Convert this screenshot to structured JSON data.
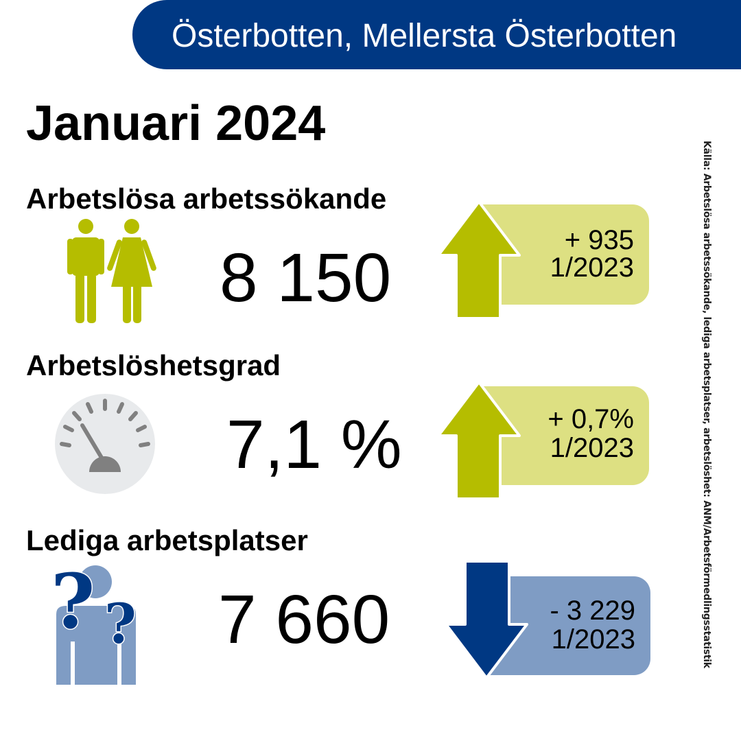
{
  "header": {
    "region": "Österbotten, Mellersta Österbotten"
  },
  "title": "Januari 2024",
  "colors": {
    "banner": "#003883",
    "green_arrow": "#b5bd00",
    "green_box": "#dde082",
    "blue_arrow": "#003883",
    "blue_box": "#7f9cc4",
    "icon_green": "#b5bd00",
    "icon_blue": "#7f9cc4"
  },
  "sections": [
    {
      "label": "Arbetslösa arbetssökande",
      "value": "8 150",
      "change": "+ 935",
      "compare": "1/2023",
      "direction": "up",
      "icon": "people-icon"
    },
    {
      "label": "Arbetslöshetsgrad",
      "value": "7,1 %",
      "change": "+ 0,7%",
      "compare": "1/2023",
      "direction": "up",
      "icon": "gauge-icon"
    },
    {
      "label": "Lediga arbetsplatser",
      "value": "7 660",
      "change": "- 3 229",
      "compare": "1/2023",
      "direction": "down",
      "icon": "question-person-icon"
    }
  ],
  "source": "Källa: Arbetslösa arbetssökande, lediga arbetsplatser, arbetslöshet: ANM/Arbetsförmedlingsstatistik"
}
